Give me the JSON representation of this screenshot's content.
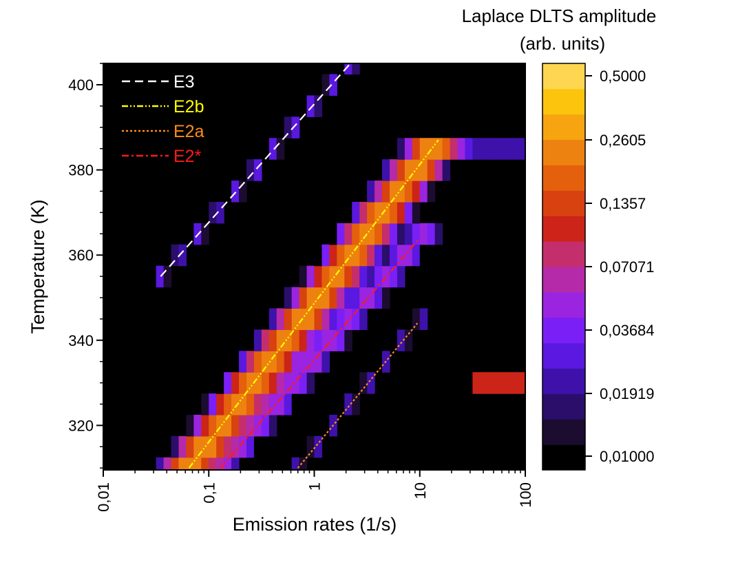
{
  "chart_data": {
    "type": "heatmap",
    "title": "",
    "xlabel": "Emission rates (1/s)",
    "ylabel": "Temperature (K)",
    "x_scale": "log",
    "xlim": [
      0.01,
      100
    ],
    "ylim": [
      310,
      405
    ],
    "x_ticks": [
      {
        "value": 0.01,
        "label": "0,01"
      },
      {
        "value": 0.1,
        "label": "0,1"
      },
      {
        "value": 1,
        "label": "1"
      },
      {
        "value": 10,
        "label": "10"
      },
      {
        "value": 100,
        "label": "100"
      }
    ],
    "y_ticks": [
      {
        "value": 320,
        "label": "320"
      },
      {
        "value": 340,
        "label": "340"
      },
      {
        "value": 360,
        "label": "360"
      },
      {
        "value": 380,
        "label": "380"
      },
      {
        "value": 400,
        "label": "400"
      }
    ],
    "colorbar": {
      "title_line1": "Laplace DLTS amplitude",
      "title_line2": "(arb. units)",
      "scale": "log",
      "range": [
        0.01,
        0.55
      ],
      "ticks": [
        {
          "value": 0.5,
          "label": "0,5000"
        },
        {
          "value": 0.2605,
          "label": "0,2605"
        },
        {
          "value": 0.1357,
          "label": "0,1357"
        },
        {
          "value": 0.07071,
          "label": "0,07071"
        },
        {
          "value": 0.03684,
          "label": "0,03684"
        },
        {
          "value": 0.01919,
          "label": "0,01919"
        },
        {
          "value": 0.01,
          "label": "0,01000"
        }
      ],
      "colors": [
        "#000000",
        "#1c0c30",
        "#2a0e6a",
        "#3e12aa",
        "#5a18e0",
        "#7a20f6",
        "#9a24e0",
        "#b42aa8",
        "#c42e6c",
        "#cc2418",
        "#d84210",
        "#e4600c",
        "#ee8210",
        "#f6a410",
        "#fcc40c",
        "#ffd650"
      ]
    },
    "series": [
      {
        "name": "E3",
        "color": "#ffffff",
        "dash": "12 7",
        "points": [
          [
            0.035,
            355
          ],
          [
            2.2,
            405
          ]
        ]
      },
      {
        "name": "E2b",
        "color": "#ffff00",
        "dash": "9 3 2 3 2 3",
        "points": [
          [
            0.065,
            310
          ],
          [
            15,
            387
          ]
        ]
      },
      {
        "name": "E2a",
        "color": "#ff8c1a",
        "dash": "3 3",
        "points": [
          [
            0.7,
            310
          ],
          [
            9.5,
            344
          ]
        ]
      },
      {
        "name": "E2*",
        "color": "#ff1a1a",
        "dash": "10 4 3 4",
        "points": [
          [
            0.13,
            310
          ],
          [
            10,
            364
          ]
        ]
      }
    ],
    "intensity_bands": [
      {
        "name": "E3 band",
        "start": [
          0.035,
          355
        ],
        "end": [
          2.2,
          405
        ],
        "width_decades": 0.07,
        "amplitude": 0.03
      },
      {
        "name": "E2b band",
        "start": [
          0.065,
          310
        ],
        "end": [
          15,
          387
        ],
        "width_decades": 0.18,
        "amplitude": 0.25
      },
      {
        "name": "E2* band",
        "start": [
          0.13,
          310
        ],
        "end": [
          10,
          364
        ],
        "width_decades": 0.15,
        "amplitude": 0.05
      },
      {
        "name": "E2a band",
        "start": [
          0.7,
          310
        ],
        "end": [
          9.5,
          344
        ],
        "width_decades": 0.07,
        "amplitude": 0.025
      },
      {
        "name": "high-T fast band",
        "start": [
          20,
          386
        ],
        "end": [
          100,
          386
        ],
        "width_decades": 0.4,
        "amplitude": 0.03
      },
      {
        "name": "high-rate spot 330 K",
        "start": [
          40,
          330
        ],
        "end": [
          100,
          330
        ],
        "width_decades": 0.25,
        "amplitude": 0.12
      }
    ]
  }
}
